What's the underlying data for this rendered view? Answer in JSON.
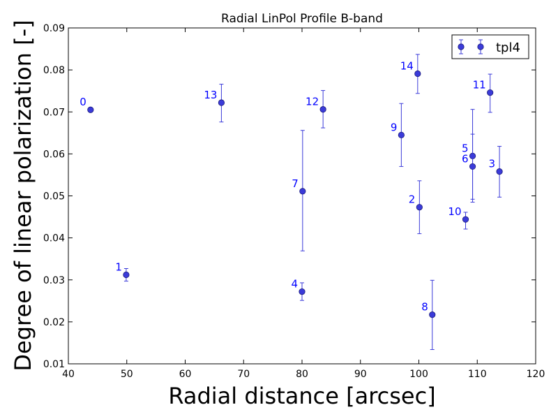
{
  "chart_data": {
    "type": "scatter",
    "title": "Radial LinPol Profile B-band",
    "xlabel": "Radial distance [arcsec]",
    "ylabel": "Degree of linear polarization [-]",
    "xlim": [
      40,
      120
    ],
    "ylim": [
      0.01,
      0.09
    ],
    "xticks": [
      40,
      50,
      60,
      70,
      80,
      90,
      100,
      110,
      120
    ],
    "xtick_labels": [
      "40",
      "50",
      "60",
      "70",
      "80",
      "90",
      "100",
      "110",
      "120"
    ],
    "yticks": [
      0.01,
      0.02,
      0.03,
      0.04,
      0.05,
      0.06,
      0.07,
      0.08,
      0.09
    ],
    "ytick_labels": [
      "0.01",
      "0.02",
      "0.03",
      "0.04",
      "0.05",
      "0.06",
      "0.07",
      "0.08",
      "0.09"
    ],
    "grid": false,
    "legend_position": "top-right",
    "marker_color": "#3b3bd9",
    "errorbar_color": "#3b3bd9",
    "label_color": "#0000ff",
    "series": [
      {
        "name": "tpl4",
        "points": [
          {
            "label": "0",
            "x": 43.8,
            "y": 0.0705,
            "yerr_low": 0.0,
            "yerr_high": 0.0
          },
          {
            "label": "1",
            "x": 49.9,
            "y": 0.0312,
            "yerr_low": 0.0015,
            "yerr_high": 0.0015
          },
          {
            "label": "2",
            "x": 100.1,
            "y": 0.0473,
            "yerr_low": 0.0063,
            "yerr_high": 0.0063
          },
          {
            "label": "3",
            "x": 113.8,
            "y": 0.0558,
            "yerr_low": 0.0061,
            "yerr_high": 0.006
          },
          {
            "label": "4",
            "x": 80.0,
            "y": 0.0272,
            "yerr_low": 0.0021,
            "yerr_high": 0.0021
          },
          {
            "label": "5",
            "x": 109.2,
            "y": 0.0595,
            "yerr_low": 0.011,
            "yerr_high": 0.0111
          },
          {
            "label": "6",
            "x": 109.2,
            "y": 0.057,
            "yerr_low": 0.0078,
            "yerr_high": 0.0077
          },
          {
            "label": "7",
            "x": 80.1,
            "y": 0.0511,
            "yerr_low": 0.0142,
            "yerr_high": 0.0145
          },
          {
            "label": "8",
            "x": 102.3,
            "y": 0.0217,
            "yerr_low": 0.0083,
            "yerr_high": 0.0082
          },
          {
            "label": "9",
            "x": 97.0,
            "y": 0.0645,
            "yerr_low": 0.0075,
            "yerr_high": 0.0075
          },
          {
            "label": "10",
            "x": 108.0,
            "y": 0.0444,
            "yerr_low": 0.0023,
            "yerr_high": 0.0017
          },
          {
            "label": "11",
            "x": 112.2,
            "y": 0.0746,
            "yerr_low": 0.0047,
            "yerr_high": 0.0044
          },
          {
            "label": "12",
            "x": 83.6,
            "y": 0.0706,
            "yerr_low": 0.0044,
            "yerr_high": 0.0045
          },
          {
            "label": "13",
            "x": 66.2,
            "y": 0.0722,
            "yerr_low": 0.0046,
            "yerr_high": 0.0044
          },
          {
            "label": "14",
            "x": 99.8,
            "y": 0.0791,
            "yerr_low": 0.0047,
            "yerr_high": 0.0046
          }
        ]
      }
    ]
  }
}
